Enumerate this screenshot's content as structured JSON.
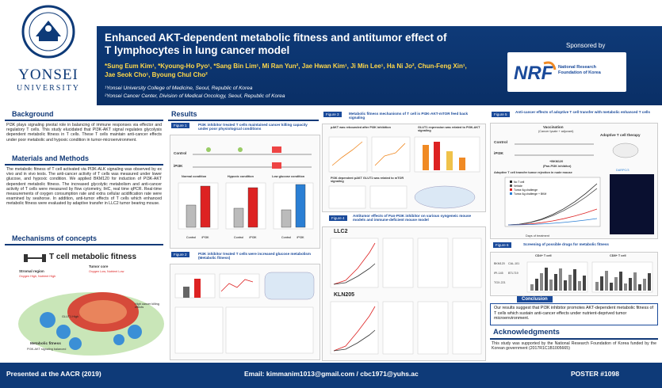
{
  "header": {
    "university_name_line1": "YONSEI",
    "university_name_line2": "UNIVERSITY",
    "seal_text": "YONSEI UNIVERSITY",
    "title_line1": "Enhanced AKT-dependent metabolic fitness and antitumor effect of",
    "title_line2": "T lymphocytes in lung cancer model",
    "authors_line1": "*Sung Eum Kim¹, *Kyoung-Ho Pyo¹, *Sang Bin Lim¹, Mi Ran Yun², Jae Hwan Kim¹, Ji Min Lee¹, Ha Ni Jo², Chun-Feng Xin¹,",
    "authors_line2": "Jae Seok Cho¹, Byoung Chul Cho²",
    "affiliation1": "¹Yonsei University College of Medicine, Seoul, Republic of Korea",
    "affiliation2": "²Yonsei Cancer Center, Division of Medical Oncology, Seoul, Republic of Korea",
    "sponsor_label": "Sponsored by",
    "sponsor_logo": "NRF",
    "sponsor_name_line1": "National Research",
    "sponsor_name_line2": "Foundation of Korea"
  },
  "background": {
    "heading": "Background",
    "text": "PI3K plays signaling pivotal role in balancing of immune responses via effector and regulatory T cells. This study elucidated that PI3K-AKT signal regulates glycolysis dependent metabolic fitness in T cells. These T cells maintain anti-cancer effects under poor metabolic and hypoxic condition in tumor-microenvironment."
  },
  "materials": {
    "heading": "Materials and Methods",
    "text": "The metabolic fitness of T cell activated via PI3K-ALK signaling was observed by ex vivo and in vivo tests. The anti-cancer activity of T cells was measured under lower glucose, and hypoxic condition. We applied BKM120 for induction of PI3K-AKT dependent metabolic fitness. The increased glycolytic metabolism and anti-cancer activity of T cells were measured by flow cytometry, IHC, real time qPCR. Real-time measurements of oxygen consumption rate and extra cellular acidification rate were examined by seahorse. In addition, anti-tumor effects of T cells which enhanced metabolic fitness were evaluated by adaptive transfer in LLC2 tumor bearing mouse."
  },
  "mechanisms": {
    "heading": "Mechanisms of concepts",
    "diagram_title": "T cell metabolic fitness",
    "stromal": "Stromal region",
    "stromal_sub": "Oxygen High, Nutrient High",
    "tumor": "Tumor core",
    "tumor_sub": "Oxygen Low, Nutrient Low",
    "lower": "Lower cancer killing effects",
    "higher": "High cancer killing effects",
    "glut": "GLUT1 High",
    "metabolic": "Metabolic fitness",
    "metabolic_sub": "PI3K-AKT signaling balanced"
  },
  "results": {
    "heading": "Results",
    "fig1_label": "Figure 1",
    "fig1_title": "PI3K inhibitor treated T cells maintained cancer killing capacity under poor physiological conditions",
    "fig1_control": "Control",
    "fig1_ipi3k": "iPI3K",
    "fig1_normal": "Normal condition",
    "fig1_hypoxic": "Hypoxic condition",
    "fig1_lowglucose": "Low glucose condition",
    "fig1_cats": [
      "Control",
      "iPI3K"
    ],
    "fig2_label": "Figure 2",
    "fig2_title": "PI3K inhibitor treated T cells were increased glucose metabolism (Metabolic fitness)",
    "fig3_label": "Figure 3",
    "fig3_title": "Metabolic fitness mechanisms of T cell is PI3K-AKT-mTOR feed back signaling",
    "fig3_a": "pAKT was rebounded after PI3K inhibition",
    "fig3_b": "GLUT1 expression was related to PI3K-AKT signaling",
    "fig3_c": "PI3K dependent pAKT GLUT1 was related to mTOR signaling",
    "fig4_label": "Figure 4",
    "fig4_title": "Antitumor effects of Pan-PI3K inhibitor on various syngeneic mouse models and immune-deficient mouse model",
    "fig4_llc2": "LLC2",
    "fig4_kln205": "KLN205",
    "fig5_label": "Figure 5",
    "fig5_title": "Anti-cancer effects of adoptive T cell transfer with metabolic enhanced T cells",
    "fig5_vaccination": "Vaccination",
    "fig5_vac_sub": "(Cancer lysate + adjuvant)",
    "fig5_adoptive": "Adoptive T cell therapy",
    "fig5_control": "Control",
    "fig5_ipi3k": "iPI3K",
    "fig5_bkm": "+BKM120",
    "fig5_bkm_sub": "(Pan-PI3K inhibitor)",
    "fig5_rejection": "Adoptive T cell transfer tumor rejection in nude mouse",
    "fig5_xlabel": "Days of treatment",
    "fig5_legend": [
      "No T cell",
      "Vehicle",
      "Tumor Ag challenge",
      "Tumor Ag challenge + BKM"
    ],
    "fig5_darpc": "DARPC/3",
    "fig6_label": "Figure 6",
    "fig6_title": "Screening of possible drugs for metabolic fitness",
    "fig6_cd4": "CD4+ T cell",
    "fig6_cd8": "CD8+ T cell",
    "fig6_drugs": [
      "BKM120",
      "CAL-101",
      "IPI-145",
      "BTL719",
      "TGX-221"
    ]
  },
  "conclusion": {
    "heading": "Conclusion",
    "text": "Our results suggest that PI3K inhibitor promotes AKT-dependent metabolic fitness of T cells which sustain anti-cancer effects under nutrient-deprived tumor microenvironment."
  },
  "ack": {
    "heading": "Acknowledgments",
    "text": "This study was supported by the National Research Foundation of Korea funded by the Korean government (2017R1C1B1005665)"
  },
  "footer": {
    "presented": "Presented at the AACR (2019)",
    "email": "Email: kimmanim1013@gmail.com / cbc1971@yuhs.ac",
    "poster": "POSTER #1098"
  },
  "colors": {
    "navy": "#0e3a78",
    "accent": "#1a4a9a",
    "yellow": "#ffd84a",
    "red": "#d22",
    "orange": "#f08a24"
  }
}
